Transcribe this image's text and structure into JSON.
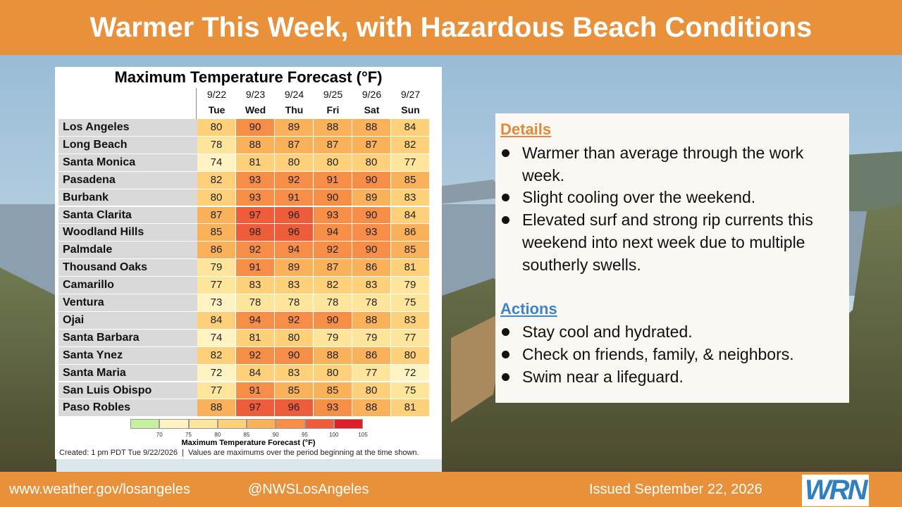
{
  "header": {
    "title": "Warmer This Week, with Hazardous Beach Conditions"
  },
  "table": {
    "title": "Maximum Temperature Forecast (°F)",
    "dates": [
      "9/22",
      "9/23",
      "9/24",
      "9/25",
      "9/26",
      "9/27"
    ],
    "days": [
      "Tue",
      "Wed",
      "Thu",
      "Fri",
      "Sat",
      "Sun"
    ],
    "rows": [
      {
        "city": "Los Angeles",
        "values": [
          80,
          90,
          89,
          88,
          88,
          84
        ]
      },
      {
        "city": "Long Beach",
        "values": [
          78,
          88,
          87,
          87,
          87,
          82
        ]
      },
      {
        "city": "Santa Monica",
        "values": [
          74,
          81,
          80,
          80,
          80,
          77
        ]
      },
      {
        "city": "Pasadena",
        "values": [
          82,
          93,
          92,
          91,
          90,
          85
        ]
      },
      {
        "city": "Burbank",
        "values": [
          80,
          93,
          91,
          90,
          89,
          83
        ]
      },
      {
        "city": "Santa Clarita",
        "values": [
          87,
          97,
          96,
          93,
          90,
          84
        ]
      },
      {
        "city": "Woodland Hills",
        "values": [
          85,
          98,
          96,
          94,
          93,
          86
        ]
      },
      {
        "city": "Palmdale",
        "values": [
          86,
          92,
          94,
          92,
          90,
          85
        ]
      },
      {
        "city": "Thousand Oaks",
        "values": [
          79,
          91,
          89,
          87,
          86,
          81
        ]
      },
      {
        "city": "Camarillo",
        "values": [
          77,
          83,
          83,
          82,
          83,
          79
        ]
      },
      {
        "city": "Ventura",
        "values": [
          73,
          78,
          78,
          78,
          78,
          75
        ]
      },
      {
        "city": "Ojai",
        "values": [
          84,
          94,
          92,
          90,
          88,
          83
        ]
      },
      {
        "city": "Santa Barbara",
        "values": [
          74,
          81,
          80,
          79,
          79,
          77
        ]
      },
      {
        "city": "Santa Ynez",
        "values": [
          82,
          92,
          90,
          88,
          86,
          80
        ]
      },
      {
        "city": "Santa Maria",
        "values": [
          72,
          84,
          83,
          80,
          77,
          72
        ]
      },
      {
        "city": "San Luis Obispo",
        "values": [
          77,
          91,
          85,
          85,
          80,
          75
        ]
      },
      {
        "city": "Paso Robles",
        "values": [
          88,
          97,
          96,
          93,
          88,
          81
        ]
      }
    ],
    "scale": {
      "lim": [
        65,
        105
      ],
      "ticks": [
        70,
        75,
        80,
        85,
        90,
        95,
        100,
        105
      ],
      "colors": [
        "#c6efa0",
        "#fff3c4",
        "#fee59b",
        "#fdd079",
        "#fab25a",
        "#f68e48",
        "#ee5d39",
        "#dc2029"
      ],
      "title": "Maximum Temperature Forecast (°F)"
    },
    "note": "Created: 1 pm PDT Tue 9/22/2026  |  Values are maximums over the period beginning at the time shown."
  },
  "details": {
    "heading": "Details",
    "bullets": [
      "Warmer than average through the work week.",
      "Slight cooling over the weekend.",
      "Elevated surf and strong rip currents this weekend into next week due to multiple southerly swells."
    ]
  },
  "actions": {
    "heading": "Actions",
    "bullets": [
      "Stay cool and hydrated.",
      "Check on friends, family, & neighbors.",
      "Swim near a lifeguard."
    ]
  },
  "footer": {
    "website": "www.weather.gov/losangeles",
    "social": "@NWSLosAngeles",
    "issued": "Issued September 22, 2026",
    "logo": "WRN"
  }
}
